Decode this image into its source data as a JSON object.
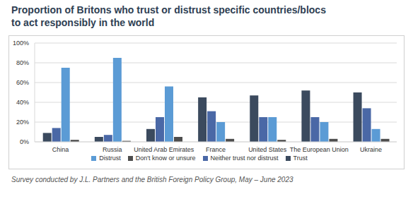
{
  "chart_data": {
    "type": "bar",
    "title": "Proportion of Britons who trust or distrust specific countries/blocs\nto act responsibly in the world",
    "caption": "Survey conducted by J.L. Partners and the British Foreign Policy Group, May – June 2023",
    "categories": [
      "China",
      "Russia",
      "United Arab Emirates",
      "France",
      "United States",
      "The European Union",
      "Ukraine"
    ],
    "series": [
      {
        "name": "Trust",
        "color": "#3b4a5e",
        "values": [
          9,
          5,
          13,
          45,
          47,
          52,
          50
        ]
      },
      {
        "name": "Neither trust nor distrust",
        "color": "#4a68a6",
        "values": [
          14,
          7,
          25,
          31,
          25,
          25,
          34
        ]
      },
      {
        "name": "Distrust",
        "color": "#5b9bd5",
        "values": [
          75,
          85,
          56,
          20,
          25,
          20,
          13
        ]
      },
      {
        "name": "Don't know or unsure",
        "color": "#4d4d4d",
        "values": [
          2,
          1,
          5,
          3,
          2,
          3,
          3
        ]
      }
    ],
    "ylim": [
      0,
      100
    ],
    "yticks": [
      {
        "value": 0,
        "label": "0%"
      },
      {
        "value": 20,
        "label": "20%"
      },
      {
        "value": 40,
        "label": "40%"
      },
      {
        "value": 60,
        "label": "60%"
      },
      {
        "value": 80,
        "label": "80%"
      },
      {
        "value": 100,
        "label": "100%"
      }
    ],
    "grid": true,
    "legend": "bottom"
  }
}
